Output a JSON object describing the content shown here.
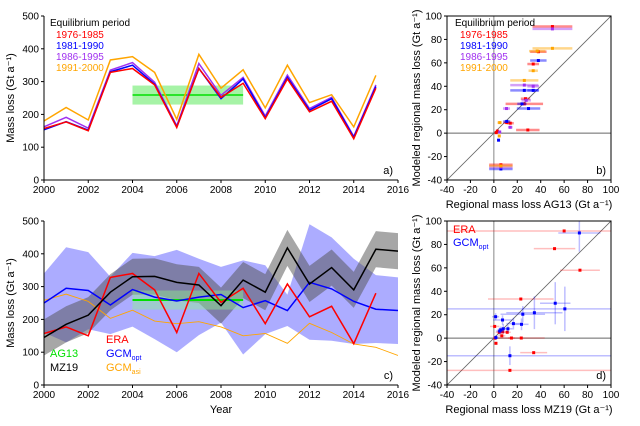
{
  "colors": {
    "red": "#ff0000",
    "blue": "#0000ff",
    "purple": "#a030f0",
    "orange": "#ffa500",
    "green": "#00e000",
    "green_band": "#90f090",
    "black": "#000000",
    "gray_band": "#505050",
    "blue_band": "#8080ff"
  },
  "chart_data": [
    {
      "panel": "a)",
      "type": "line",
      "ylabel": "Mass loss (Gt a⁻¹)",
      "xlim": [
        2000,
        2016
      ],
      "ylim": [
        0,
        500
      ],
      "xticks": [
        2000,
        2002,
        2004,
        2006,
        2008,
        2010,
        2012,
        2014,
        2016
      ],
      "yticks": [
        0,
        100,
        200,
        300,
        400,
        500
      ],
      "legend_title": "Equilibrium period",
      "legend_placement": "top-left",
      "x": [
        2000,
        2001,
        2002,
        2003,
        2004,
        2005,
        2006,
        2007,
        2008,
        2009,
        2010,
        2011,
        2012,
        2013,
        2014,
        2015
      ],
      "series": [
        {
          "name": "1976-1985",
          "color": "red",
          "values": [
            157,
            177,
            150,
            328,
            340,
            290,
            160,
            340,
            252,
            295,
            187,
            308,
            208,
            240,
            126,
            280
          ]
        },
        {
          "name": "1981-1990",
          "color": "blue",
          "values": [
            153,
            178,
            152,
            330,
            350,
            292,
            162,
            340,
            248,
            308,
            190,
            313,
            213,
            248,
            130,
            285
          ]
        },
        {
          "name": "1986-1995",
          "color": "purple",
          "values": [
            162,
            191,
            158,
            335,
            358,
            298,
            165,
            355,
            258,
            313,
            195,
            320,
            218,
            252,
            133,
            290
          ]
        },
        {
          "name": "1991-2000",
          "color": "orange",
          "values": [
            180,
            221,
            183,
            366,
            376,
            328,
            185,
            383,
            280,
            336,
            220,
            350,
            236,
            260,
            162,
            319
          ]
        }
      ],
      "reference": {
        "x_range": [
          2004,
          2009
        ],
        "mean": 259,
        "band": [
          230,
          288
        ],
        "color": "green"
      }
    },
    {
      "panel": "b)",
      "type": "scatter",
      "xlabel": "Regional mass loss AG13 (Gt a⁻¹)",
      "ylabel": "Modeled regional mass loss (Gt a⁻¹)",
      "xlim": [
        -40,
        100
      ],
      "ylim": [
        -40,
        100
      ],
      "xticks": [
        -40,
        -20,
        0,
        20,
        40,
        60,
        80,
        100
      ],
      "yticks": [
        -40,
        -20,
        0,
        20,
        40,
        60,
        80,
        100
      ],
      "legend_title": "Equilibrium period",
      "legend_placement": "top-left",
      "series": [
        {
          "name": "1976-1985",
          "color": "red",
          "points": [
            [
              50,
              91,
              17
            ],
            [
              38,
              69.5,
              7
            ],
            [
              33.6,
              59,
              5
            ],
            [
              27,
              29.4,
              4
            ],
            [
              26,
              25,
              16
            ],
            [
              29,
              2.7,
              10
            ],
            [
              11,
              9,
              3
            ],
            [
              14,
              8.5,
              3
            ],
            [
              2,
              0.4,
              1
            ],
            [
              3,
              1.8,
              1
            ],
            [
              6,
              -27,
              10
            ]
          ]
        },
        {
          "name": "1981-1990",
          "color": "blue",
          "points": [
            [
              38,
              62,
              7
            ],
            [
              26,
              36.5,
              12
            ],
            [
              33.6,
              36.5,
              5
            ],
            [
              29.6,
              21,
              10
            ],
            [
              24,
              25,
              4
            ],
            [
              11,
              10,
              3
            ],
            [
              4,
              -6,
              1
            ],
            [
              6,
              -30.6,
              10
            ]
          ]
        },
        {
          "name": "1986-1995",
          "color": "purple",
          "points": [
            [
              50,
              89,
              17
            ],
            [
              26,
              41,
              12
            ],
            [
              33.6,
              40,
              5
            ],
            [
              27.6,
              28,
              4
            ],
            [
              10.8,
              21,
              3
            ],
            [
              14,
              5,
              2
            ],
            [
              5,
              1,
              1
            ],
            [
              6,
              -29,
              10
            ]
          ]
        },
        {
          "name": "1991-2000",
          "color": "orange",
          "points": [
            [
              50,
              72.4,
              17
            ],
            [
              37,
              70,
              7
            ],
            [
              33.6,
              53.3,
              4
            ],
            [
              26,
              45,
              12
            ],
            [
              5,
              9,
              2
            ],
            [
              4.6,
              -2.4,
              1
            ],
            [
              6,
              -28,
              10
            ]
          ]
        }
      ]
    },
    {
      "panel": "c)",
      "type": "line",
      "xlabel": "Year",
      "ylabel": "Mass loss (Gt a⁻¹)",
      "xlim": [
        2000,
        2016
      ],
      "ylim": [
        0,
        500
      ],
      "xticks": [
        2000,
        2002,
        2004,
        2006,
        2008,
        2010,
        2012,
        2014,
        2016
      ],
      "yticks": [
        0,
        100,
        200,
        300,
        400,
        500
      ],
      "legend_placement": "bottom-left",
      "x": [
        2000,
        2001,
        2002,
        2003,
        2004,
        2005,
        2006,
        2007,
        2008,
        2009,
        2010,
        2011,
        2012,
        2013,
        2014,
        2015,
        2016
      ],
      "bands": [
        {
          "of": "GCM_opt",
          "color": "blue_band",
          "upper": [
            340,
            420,
            405,
            330,
            403,
            393,
            412,
            385,
            360,
            380,
            365,
            275,
            490,
            450,
            385,
            335,
            328
          ],
          "lower": [
            160,
            130,
            170,
            155,
            178,
            140,
            100,
            152,
            190,
            93,
            155,
            180,
            138,
            135,
            125,
            128,
            125
          ]
        },
        {
          "of": "MZ19",
          "color": "gray_band",
          "upper": [
            200,
            240,
            268,
            338,
            385,
            386,
            368,
            360,
            297,
            375,
            338,
            473,
            363,
            413,
            345,
            469,
            463
          ],
          "lower": [
            90,
            130,
            158,
            228,
            275,
            276,
            258,
            250,
            187,
            265,
            228,
            363,
            253,
            303,
            235,
            359,
            353
          ]
        }
      ],
      "series": [
        {
          "name": "ERA",
          "color": "red",
          "values": [
            157,
            177,
            150,
            328,
            340,
            290,
            160,
            340,
            252,
            295,
            187,
            308,
            208,
            240,
            126,
            280,
            null
          ]
        },
        {
          "name": "GCM",
          "sub": "opt",
          "color": "blue",
          "values": [
            250,
            295,
            288,
            244,
            291,
            268,
            256,
            268,
            276,
            236,
            257,
            227,
            313,
            293,
            255,
            231,
            227
          ]
        },
        {
          "name": "MZ19",
          "color": "black",
          "values": [
            145,
            185,
            213,
            283,
            330,
            331,
            313,
            305,
            242,
            320,
            283,
            418,
            308,
            358,
            290,
            414,
            408
          ]
        },
        {
          "name": "GCM",
          "sub": "asi",
          "color": "orange",
          "values": [
            258,
            277,
            255,
            203,
            228,
            195,
            187,
            193,
            177,
            150,
            157,
            127,
            188,
            160,
            125,
            115,
            90
          ]
        }
      ],
      "reference": {
        "name": "AG13",
        "x_range": [
          2004,
          2009
        ],
        "mean": 259,
        "band": [
          230,
          288
        ],
        "color": "green"
      }
    },
    {
      "panel": "d)",
      "type": "scatter",
      "xlabel": "Regional mass loss MZ19 (Gt a⁻¹)",
      "ylabel": "Modeled regional mass loss (Gt a⁻¹)",
      "xlim": [
        -40,
        100
      ],
      "ylim": [
        -40,
        100
      ],
      "xticks": [
        -40,
        -20,
        0,
        20,
        40,
        60,
        80,
        100
      ],
      "yticks": [
        -40,
        -20,
        0,
        20,
        40,
        60,
        80,
        100
      ],
      "legend_placement": "top-left",
      "series": [
        {
          "name": "ERA",
          "color": "red",
          "points": [
            [
              60,
              91.5,
              100,
              0
            ],
            [
              51.8,
              76.4,
              17.7,
              0
            ],
            [
              73.5,
              58,
              17,
              0
            ],
            [
              23,
              33.4,
              28,
              0
            ],
            [
              34,
              -12.4,
              11.5,
              0
            ],
            [
              13.7,
              -27.5,
              100,
              0
            ],
            [
              0.7,
              10,
              4,
              0
            ],
            [
              1.8,
              -4.4,
              1,
              0
            ],
            [
              4.6,
              5,
              3,
              0
            ],
            [
              7.5,
              5.3,
              3,
              0
            ],
            [
              11.4,
              5,
              3,
              0
            ],
            [
              6.8,
              2,
              3,
              0
            ],
            [
              15,
              0.1,
              3,
              0
            ],
            [
              23.4,
              0.1,
              20,
              0
            ],
            [
              1,
              0,
              1,
              0
            ]
          ]
        },
        {
          "name": "GCM",
          "sub": "opt",
          "color": "blue",
          "points": [
            [
              73,
              89.8,
              18,
              16
            ],
            [
              52.4,
              29.8,
              13,
              18
            ],
            [
              60.6,
              25,
              100,
              19
            ],
            [
              34.6,
              21.7,
              24,
              14
            ],
            [
              24.7,
              20.4,
              19,
              7
            ],
            [
              23.6,
              11.8,
              6,
              5
            ],
            [
              16.7,
              12.4,
              6,
              5
            ],
            [
              7.4,
              15.5,
              8,
              4
            ],
            [
              1.5,
              18.3,
              3,
              3
            ],
            [
              8,
              8,
              4,
              4
            ],
            [
              12,
              8,
              4,
              3
            ],
            [
              6,
              7,
              3,
              3
            ],
            [
              5,
              6,
              3,
              3
            ],
            [
              13.7,
              -15,
              100,
              8
            ],
            [
              1.7,
              0.5,
              2,
              2
            ]
          ]
        }
      ]
    }
  ]
}
